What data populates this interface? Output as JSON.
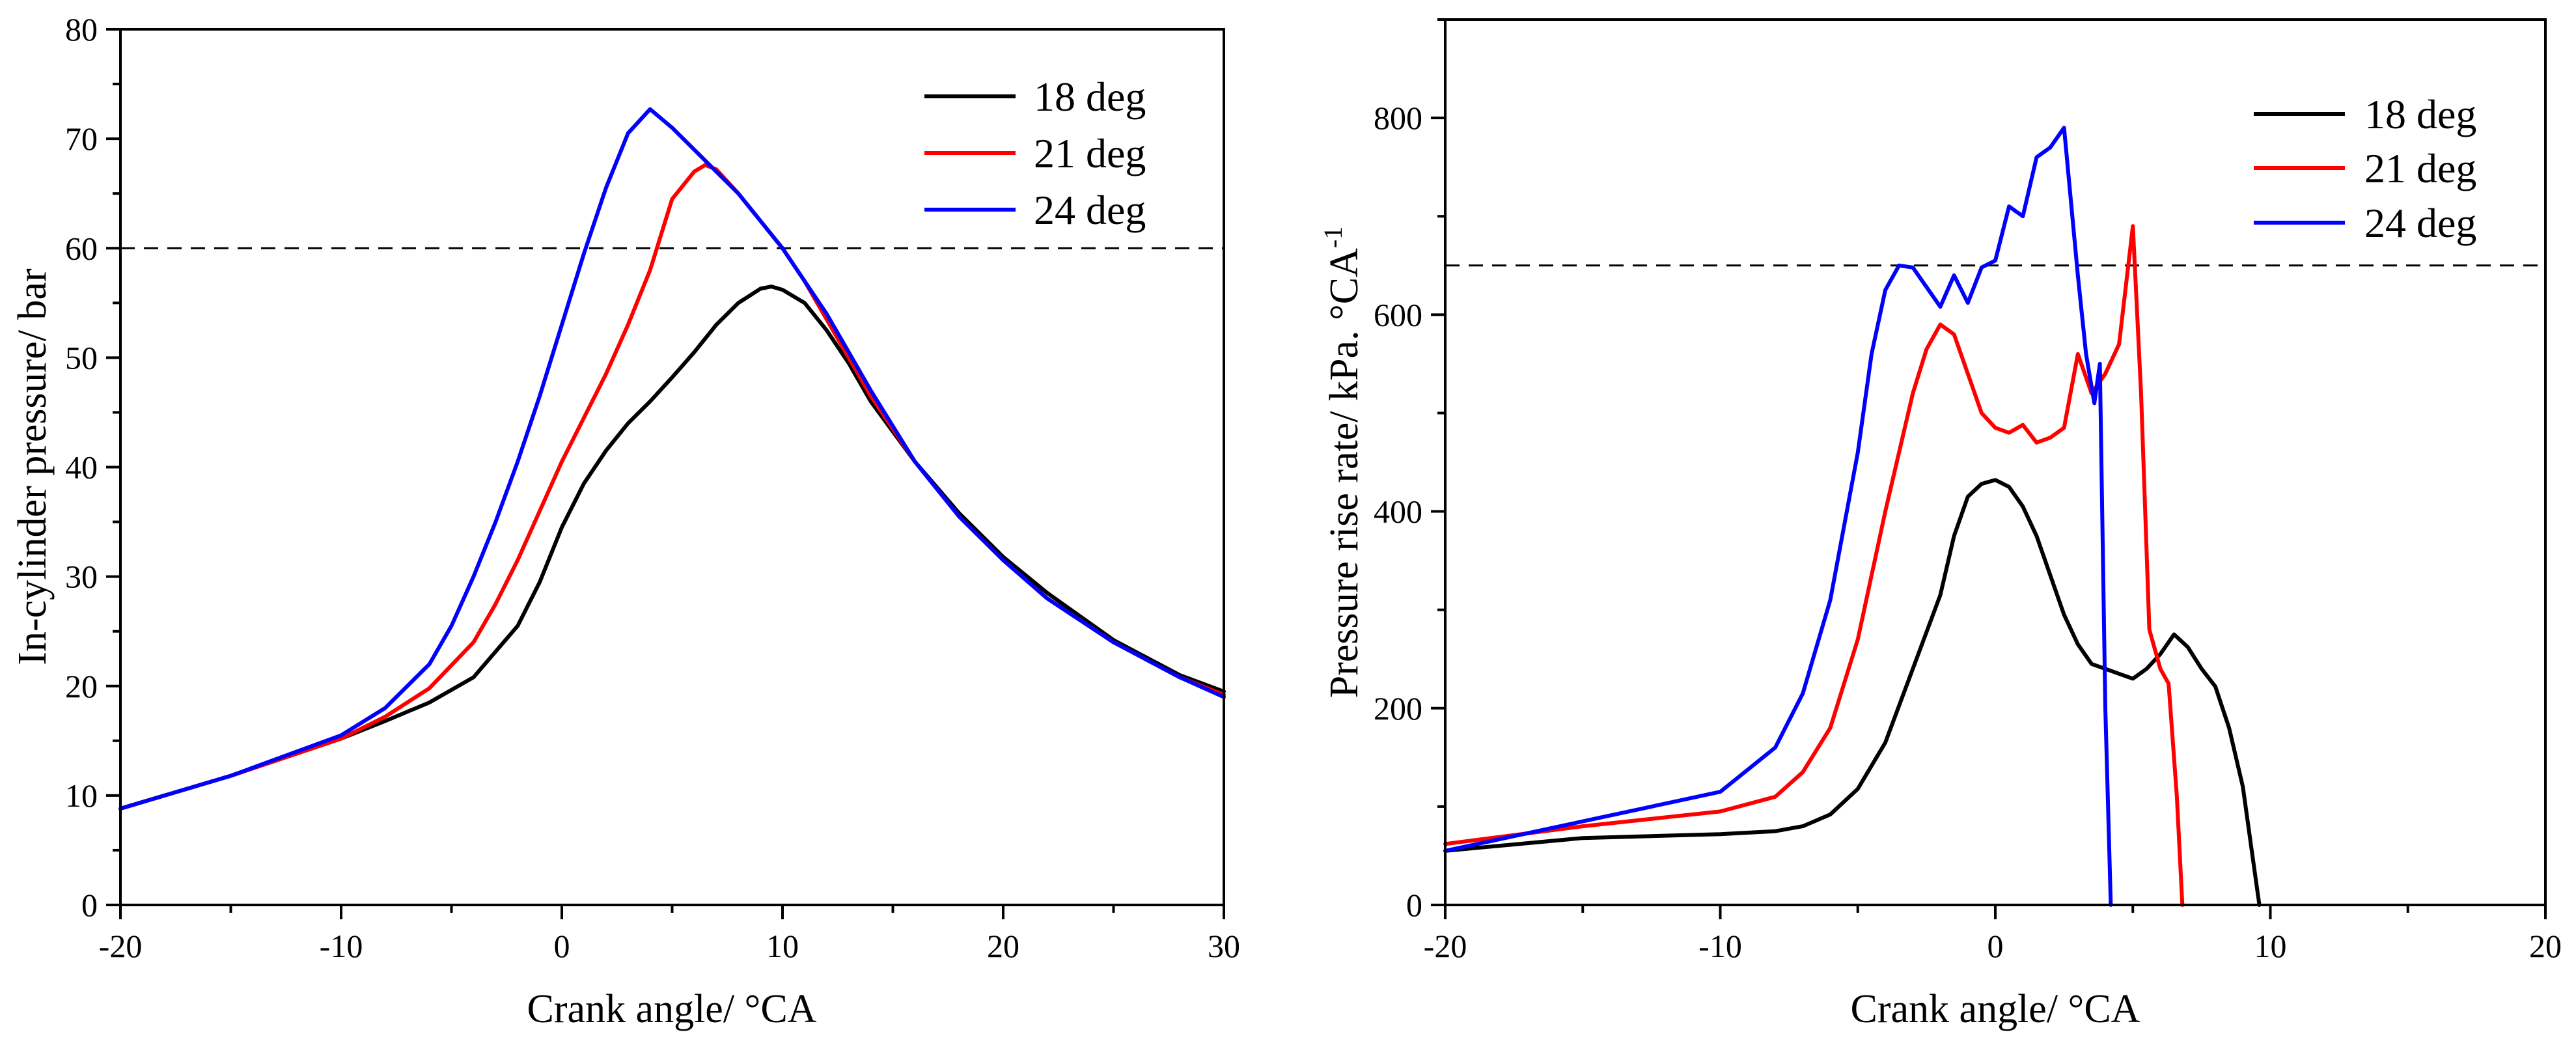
{
  "chart_data": [
    {
      "type": "line",
      "title": "",
      "xlabel": "Crank angle/ °CA",
      "ylabel": "In-cylinder pressure/ bar",
      "xlim": [
        -20,
        30
      ],
      "ylim": [
        0,
        80
      ],
      "xticks": [
        -20,
        -10,
        0,
        10,
        20,
        30
      ],
      "yticks": [
        0,
        10,
        20,
        30,
        40,
        50,
        60,
        70,
        80
      ],
      "xtick_labels": [
        "-20",
        "-10",
        "0",
        "10",
        "20",
        "30"
      ],
      "ytick_labels": [
        "0",
        "10",
        "20",
        "30",
        "40",
        "50",
        "60",
        "70",
        "80"
      ],
      "grid": false,
      "legend_position": "top-right",
      "reference_line": {
        "y": 60,
        "style": "dashed"
      },
      "series": [
        {
          "name": "18 deg",
          "color": "#000000",
          "x": [
            -20,
            -15,
            -10,
            -8,
            -6,
            -4,
            -2,
            -1,
            0,
            1,
            2,
            3,
            4,
            5,
            6,
            7,
            8,
            9,
            9.5,
            10,
            11,
            12,
            13,
            14,
            16,
            18,
            20,
            22,
            25,
            28,
            30
          ],
          "y": [
            8.8,
            11.8,
            15.2,
            16.8,
            18.5,
            20.8,
            25.5,
            29.5,
            34.5,
            38.5,
            41.5,
            44.0,
            46.0,
            48.2,
            50.5,
            53.0,
            55.0,
            56.3,
            56.5,
            56.2,
            55.0,
            52.5,
            49.5,
            46.0,
            40.5,
            35.8,
            31.8,
            28.5,
            24.2,
            21.0,
            19.5
          ]
        },
        {
          "name": "21 deg",
          "color": "#ff0000",
          "x": [
            -20,
            -15,
            -10,
            -8,
            -6,
            -4,
            -3,
            -2,
            -1,
            0,
            1,
            2,
            3,
            4,
            5,
            6,
            6.5,
            7,
            8,
            9,
            10,
            11,
            12,
            14,
            16,
            18,
            20,
            22,
            25,
            28,
            30
          ],
          "y": [
            8.8,
            11.8,
            15.2,
            17.2,
            19.8,
            24.0,
            27.5,
            31.5,
            36.0,
            40.5,
            44.5,
            48.5,
            53.0,
            58.0,
            64.5,
            67.0,
            67.6,
            67.2,
            65.0,
            62.5,
            60.0,
            57.0,
            53.5,
            46.5,
            40.5,
            35.5,
            31.5,
            28.0,
            24.0,
            20.8,
            19.2
          ]
        },
        {
          "name": "24 deg",
          "color": "#0000ff",
          "x": [
            -20,
            -15,
            -10,
            -8,
            -6,
            -5,
            -4,
            -3,
            -2,
            -1,
            0,
            1,
            2,
            3,
            4,
            5,
            6,
            7,
            8,
            9,
            10,
            11,
            12,
            14,
            16,
            18,
            20,
            22,
            25,
            28,
            30
          ],
          "y": [
            8.8,
            11.8,
            15.5,
            18.0,
            22.0,
            25.5,
            30.0,
            35.0,
            40.5,
            46.5,
            53.0,
            59.5,
            65.5,
            70.5,
            72.7,
            71.0,
            69.0,
            67.0,
            65.0,
            62.5,
            60.0,
            57.0,
            54.0,
            47.0,
            40.5,
            35.5,
            31.5,
            28.0,
            24.0,
            20.8,
            19.0
          ]
        }
      ]
    },
    {
      "type": "line",
      "title": "",
      "xlabel": "Crank angle/ °CA",
      "ylabel_main": "Pressure rise rate/ kPa. °CA",
      "ylabel_sup": "-1",
      "xlim": [
        -20,
        20
      ],
      "ylim": [
        0,
        900
      ],
      "xticks": [
        -20,
        -10,
        0,
        10,
        20
      ],
      "yticks": [
        0,
        200,
        400,
        600,
        800
      ],
      "xtick_labels": [
        "-20",
        "-10",
        "0",
        "10",
        "20"
      ],
      "ytick_labels": [
        "0",
        "200",
        "400",
        "600",
        "800"
      ],
      "grid": false,
      "legend_position": "top-right",
      "reference_line": {
        "y": 650,
        "style": "dashed"
      },
      "series": [
        {
          "name": "18 deg",
          "color": "#000000",
          "x": [
            -20,
            -15,
            -10,
            -8,
            -7,
            -6,
            -5,
            -4,
            -3,
            -2,
            -1.5,
            -1,
            -0.5,
            0,
            0.5,
            1,
            1.5,
            2,
            2.5,
            3,
            3.5,
            4,
            4.5,
            5,
            5.5,
            6,
            6.5,
            7,
            7.5,
            8,
            8.5,
            9,
            9.3,
            9.6
          ],
          "y": [
            55,
            68,
            72,
            75,
            80,
            92,
            118,
            165,
            240,
            315,
            375,
            415,
            428,
            432,
            425,
            405,
            375,
            335,
            295,
            265,
            245,
            240,
            235,
            230,
            240,
            255,
            275,
            262,
            240,
            222,
            180,
            120,
            60,
            0
          ]
        },
        {
          "name": "21 deg",
          "color": "#ff0000",
          "x": [
            -20,
            -15,
            -10,
            -8,
            -7,
            -6,
            -5,
            -4,
            -3,
            -2.5,
            -2,
            -1.5,
            -1,
            -0.5,
            0,
            0.5,
            1,
            1.5,
            2,
            2.5,
            3,
            3.5,
            4,
            4.5,
            5,
            5.3,
            5.6,
            6,
            6.3,
            6.6,
            6.8
          ],
          "y": [
            62,
            80,
            95,
            110,
            135,
            180,
            270,
            400,
            520,
            565,
            590,
            580,
            540,
            500,
            485,
            480,
            488,
            470,
            475,
            485,
            560,
            520,
            540,
            570,
            690,
            520,
            280,
            240,
            225,
            110,
            0
          ]
        },
        {
          "name": "24 deg",
          "color": "#0000ff",
          "x": [
            -20,
            -15,
            -10,
            -8,
            -7,
            -6,
            -5,
            -4.5,
            -4,
            -3.5,
            -3,
            -2.5,
            -2,
            -1.5,
            -1,
            -0.5,
            0,
            0.5,
            1,
            1.5,
            2,
            2.5,
            3,
            3.3,
            3.6,
            3.8,
            4,
            4.2
          ],
          "y": [
            55,
            85,
            115,
            160,
            215,
            310,
            460,
            560,
            625,
            650,
            648,
            628,
            608,
            640,
            612,
            648,
            655,
            710,
            700,
            760,
            770,
            790,
            640,
            560,
            510,
            550,
            200,
            0
          ]
        }
      ]
    }
  ]
}
